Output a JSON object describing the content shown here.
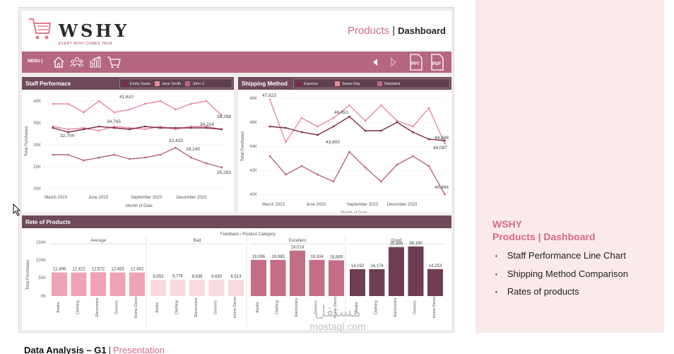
{
  "header": {
    "brand": "WSHY",
    "tagline": "EVERY WISH COMES TRUE",
    "title_main": "Products",
    "title_sep": "|",
    "title_sub": "Dashboard"
  },
  "menu": {
    "label": "MENU |",
    "icons": [
      "home-icon",
      "team-icon",
      "bar-chart-icon",
      "cart-icon"
    ],
    "nav": [
      "prev-arrow-icon",
      "next-arrow-icon",
      "ppt-file-icon",
      "pdf-file-icon"
    ],
    "file_labels": {
      "ppt": "PPT",
      "pdf": "PDF"
    }
  },
  "staff": {
    "title": "Staff Performace",
    "legend": [
      "Emily Davis",
      "Jane Smith",
      "John C"
    ],
    "colors": [
      "#7d2a48",
      "#e78a9e",
      "#b5677f"
    ],
    "ylabel": "Total Purchases",
    "xlabel": "Month of Date",
    "yticks": [
      "40K",
      "35K",
      "30K",
      "25K",
      "20K"
    ],
    "xticks": [
      "March 2023",
      "June 2023",
      "September 2023",
      "December 2023"
    ],
    "labels": [
      "41,610",
      "38,298",
      "34,765",
      "32,704",
      "32,433",
      "34,224",
      "28,245",
      "25,283"
    ]
  },
  "ship": {
    "title": "Shipping Method",
    "legend": [
      "Express",
      "Same-Day",
      "Standard"
    ],
    "colors": [
      "#7d2a48",
      "#e78a9e",
      "#b5677f"
    ],
    "ylabel": "Total Purchases",
    "xlabel": "Month of Date",
    "yticks": [
      "48K",
      "46K",
      "44K",
      "42K",
      "40K"
    ],
    "xticks": [
      "March 2023",
      "June 2023",
      "September 2023",
      "December 2023"
    ],
    "labels": [
      "47,823",
      "46,851",
      "43,800",
      "44,888",
      "44,087",
      "40,464"
    ]
  },
  "rate": {
    "title": "Rete of Products",
    "subtitle": "Feedback / Product Category",
    "ylabel": "Total Purchases",
    "yticks": [
      "150K",
      "100K",
      "50K",
      "0K"
    ],
    "groups": [
      {
        "name": "Average",
        "color": "#f0a3b4",
        "cats": [
          "Books",
          "Clothing",
          "Electronics",
          "Grocery",
          "Home Decor"
        ],
        "values": [
          "12,496",
          "12,422",
          "12,572",
          "12,453",
          "12,452"
        ]
      },
      {
        "name": "Bad",
        "color": "#f8d9df",
        "cats": [
          "Books",
          "Clothing",
          "Electronics",
          "Grocery",
          "Home Decor"
        ],
        "values": [
          "8,553",
          "8,776",
          "8,638",
          "8,630",
          "8,513"
        ]
      },
      {
        "name": "Excellent",
        "color": "#c36d86",
        "cats": [
          "Books",
          "Clothing",
          "Electronics",
          "Grocery",
          "Home Decor"
        ],
        "values": [
          "19,096",
          "19,089",
          "24,014",
          "19,104",
          "18,889"
        ]
      },
      {
        "name": "Good",
        "color": "#6f3e54",
        "cats": [
          "Books",
          "Clothing",
          "Electronics",
          "Grocery",
          "Home Decor"
        ],
        "values": [
          "14,192",
          "14,174",
          "25,889",
          "26,190",
          "14,253"
        ]
      }
    ]
  },
  "side": {
    "brand": "WSHY",
    "title": "Products | Dashboard",
    "items": [
      "Staff Performance Line Chart",
      "Shipping Method Comparison",
      "Rates of products"
    ]
  },
  "footer": {
    "bold": "Data Analysis – G1",
    "sep": "|",
    "rest": "Presentation"
  },
  "watermark": {
    "arabic": "مستقل",
    "latin": "mostaql.com"
  }
}
